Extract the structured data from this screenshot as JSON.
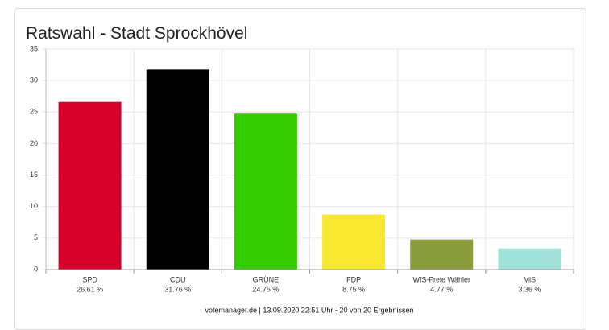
{
  "chart_data": {
    "type": "bar",
    "title": "Ratswahl - Stadt Sprockhövel",
    "categories": [
      "SPD",
      "CDU",
      "GRÜNE",
      "FDP",
      "WfS-Freie Wähler",
      "MiS"
    ],
    "values": [
      26.61,
      31.76,
      24.75,
      8.75,
      4.77,
      3.36
    ],
    "value_labels": [
      "26.61 %",
      "31.76 %",
      "24.75 %",
      "8.75 %",
      "4.77 %",
      "3.36 %"
    ],
    "colors": [
      "#d7002a",
      "#000000",
      "#33cc00",
      "#f9e830",
      "#8a9c3c",
      "#a2e1d9"
    ],
    "ylim": [
      0,
      35
    ],
    "yticks": [
      0,
      5,
      10,
      15,
      20,
      25,
      30,
      35
    ],
    "grid": true,
    "footer": "votemanager.de | 13.09.2020 22:51 Uhr - 20 von 20 Ergebnissen"
  }
}
